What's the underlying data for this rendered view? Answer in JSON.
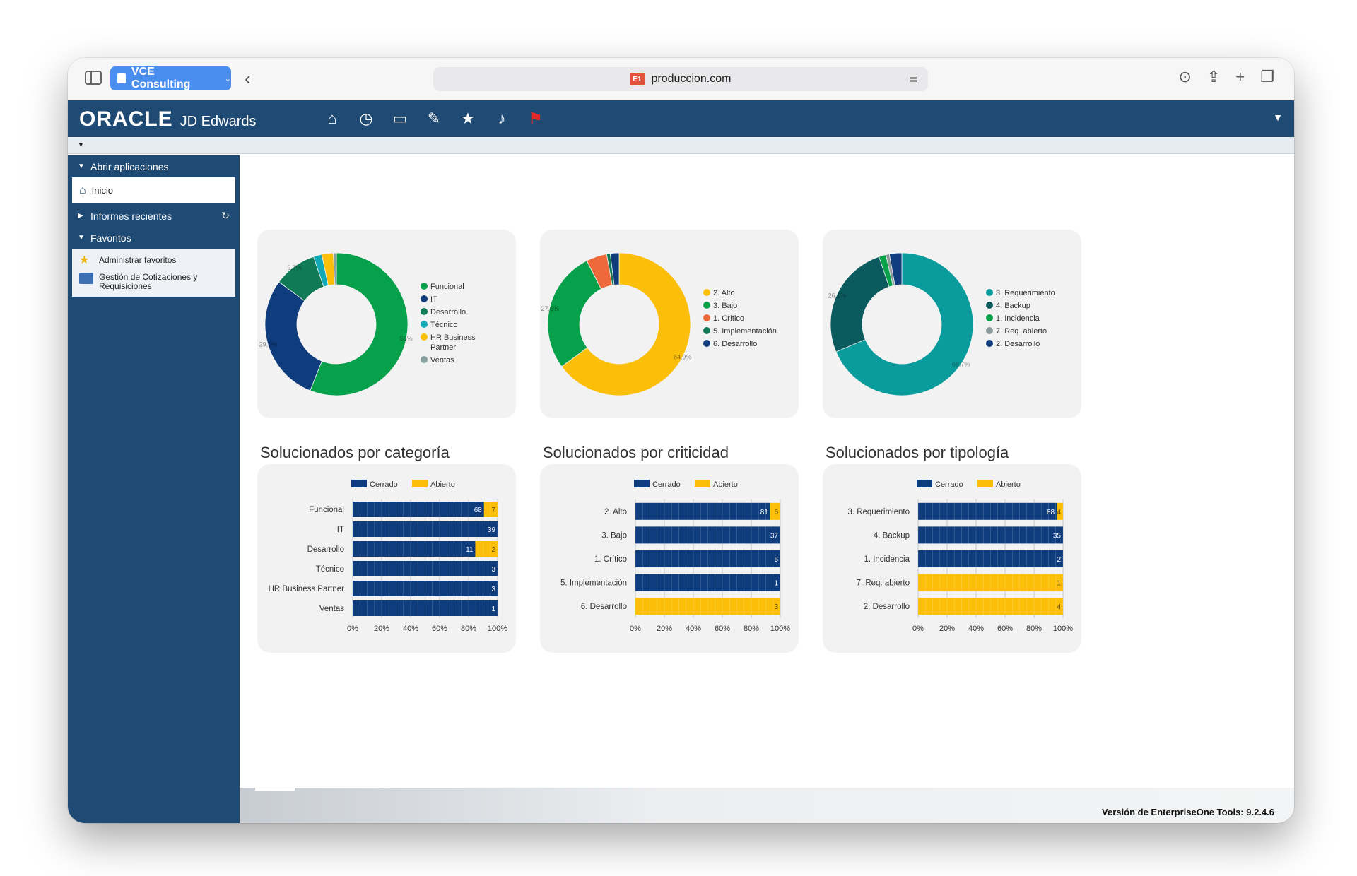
{
  "browser": {
    "tab_group": "VCE Consulting",
    "favicon": "E1",
    "url": "produccion.com",
    "icons": [
      "sidebar-icon",
      "back-icon",
      "download-icon",
      "share-icon",
      "plus-icon",
      "tabs-icon"
    ]
  },
  "header": {
    "logo_oracle": "ORACLE",
    "logo_product": "JD Edwards",
    "icons": [
      "home-icon",
      "recent-icon",
      "monitor-icon",
      "edit-icon",
      "star-icon",
      "bell-icon",
      "flag-icon"
    ]
  },
  "nav": {
    "open_apps": "Abrir aplicaciones",
    "home": "Inicio",
    "recent_reports": "Informes recientes",
    "favorites": "Favoritos",
    "fav_items": [
      "Administrar favoritos",
      "Gestión de Cotizaciones y Requisiciones"
    ]
  },
  "footer": {
    "version": "Versión de EnterpriseOne Tools: 9.2.4.6"
  },
  "colors": {
    "navy": "#0f3c7d",
    "yellow": "#fbbf0a",
    "green": "#07a04b",
    "teal": "#0a9c9c",
    "darkteal": "#0b5b5e",
    "dkgreen": "#0f7a55",
    "orange": "#ef6a3a",
    "gray": "#8aa0a0"
  },
  "chart_data": [
    {
      "type": "pie",
      "donut": true,
      "categories": [
        "Funcional",
        "IT",
        "Desarrollo",
        "Técnico",
        "HR Business Partner",
        "Ventas"
      ],
      "values": [
        56,
        29.1,
        9.7,
        1.9,
        2.6,
        0.7
      ],
      "data_labels": [
        "56%",
        "29,1%",
        "9,7%",
        "",
        "",
        ""
      ],
      "colors": [
        "#07a04b",
        "#0f3c7d",
        "#0f7a55",
        "#12a9b6",
        "#fbbf0a",
        "#8aa0a0"
      ],
      "legend": "right"
    },
    {
      "type": "pie",
      "donut": true,
      "categories": [
        "2. Alto",
        "3. Bajo",
        "1. Crítico",
        "5. Implementación",
        "6. Desarrollo"
      ],
      "values": [
        64.9,
        27.6,
        4.7,
        0.8,
        2.0
      ],
      "data_labels": [
        "64,9%",
        "27,6%",
        "",
        "",
        ""
      ],
      "colors": [
        "#fbbf0a",
        "#07a04b",
        "#ef6a3a",
        "#0f7a55",
        "#0f3c7d"
      ],
      "legend": "right"
    },
    {
      "type": "pie",
      "donut": true,
      "categories": [
        "3. Requerimiento",
        "4. Backup",
        "1. Incidencia",
        "7. Req. abierto",
        "2. Desarrollo"
      ],
      "values": [
        68.7,
        26.1,
        1.6,
        0.8,
        2.8
      ],
      "data_labels": [
        "68,7%",
        "26,1%",
        "",
        "",
        ""
      ],
      "colors": [
        "#0a9c9c",
        "#0b5b5e",
        "#07a04b",
        "#8a9a9a",
        "#0f3c7d"
      ],
      "legend": "right"
    },
    {
      "type": "bar",
      "orientation": "horizontal",
      "stacked": "percent",
      "title": "Solucionados por categoría",
      "categories": [
        "Funcional",
        "IT",
        "Desarrollo",
        "Técnico",
        "HR Business Partner",
        "Ventas"
      ],
      "series": [
        {
          "name": "Cerrado",
          "values": [
            68,
            39,
            11,
            3,
            3,
            1
          ],
          "color": "#0f3c7d"
        },
        {
          "name": "Abierto",
          "values": [
            7,
            0,
            2,
            0,
            0,
            0
          ],
          "color": "#fbbf0a"
        }
      ],
      "xticks": [
        "0%",
        "20%",
        "40%",
        "60%",
        "80%",
        "100%"
      ],
      "legend": "top"
    },
    {
      "type": "bar",
      "orientation": "horizontal",
      "stacked": "percent",
      "title": "Solucionados por criticidad",
      "categories": [
        "2. Alto",
        "3. Bajo",
        "1. Crítico",
        "5. Implementación",
        "6. Desarrollo"
      ],
      "series": [
        {
          "name": "Cerrado",
          "values": [
            81,
            37,
            6,
            1,
            0
          ],
          "color": "#0f3c7d"
        },
        {
          "name": "Abierto",
          "values": [
            6,
            0,
            0,
            0,
            3
          ],
          "color": "#fbbf0a"
        }
      ],
      "xticks": [
        "0%",
        "20%",
        "40%",
        "60%",
        "80%",
        "100%"
      ],
      "legend": "top"
    },
    {
      "type": "bar",
      "orientation": "horizontal",
      "stacked": "percent",
      "title": "Solucionados por tipología",
      "categories": [
        "3. Requerimiento",
        "4. Backup",
        "1. Incidencia",
        "7. Req. abierto",
        "2. Desarrollo"
      ],
      "series": [
        {
          "name": "Cerrado",
          "values": [
            88,
            35,
            2,
            0,
            0
          ],
          "color": "#0f3c7d"
        },
        {
          "name": "Abierto",
          "values": [
            4,
            0,
            0,
            1,
            4
          ],
          "color": "#fbbf0a"
        }
      ],
      "xticks": [
        "0%",
        "20%",
        "40%",
        "60%",
        "80%",
        "100%"
      ],
      "legend": "top"
    }
  ]
}
